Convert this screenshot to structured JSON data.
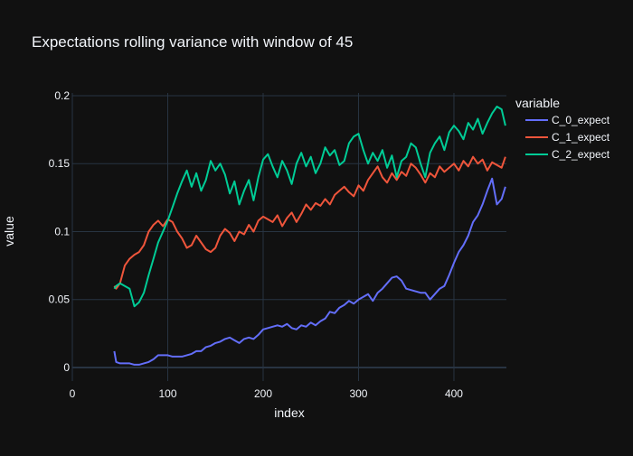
{
  "colors": {
    "background": "#111111",
    "grid": "#283442",
    "text": "#f2f5fa",
    "series": [
      "#636efa",
      "#EF553B",
      "#00cc96"
    ]
  },
  "chart_data": {
    "type": "line",
    "title": "Expectations rolling variance with window of 45",
    "xlabel": "index",
    "ylabel": "value",
    "xlim": [
      0,
      455
    ],
    "ylim": [
      -0.01,
      0.202
    ],
    "xticks": [
      0,
      100,
      200,
      300,
      400
    ],
    "yticks": [
      0,
      0.05,
      0.1,
      0.15,
      0.2
    ],
    "ytick_labels": [
      "0",
      "0.05",
      "0.1",
      "0.15",
      "0.2"
    ],
    "grid": true,
    "legend": {
      "title": "variable",
      "placement": "right"
    },
    "series": [
      {
        "name": "C_0_expect",
        "color": "#636efa",
        "x": [
          44,
          46,
          50,
          55,
          60,
          65,
          70,
          75,
          80,
          85,
          90,
          95,
          100,
          105,
          110,
          115,
          120,
          125,
          130,
          135,
          140,
          145,
          150,
          155,
          160,
          165,
          170,
          175,
          180,
          185,
          190,
          195,
          200,
          205,
          210,
          215,
          220,
          225,
          230,
          235,
          240,
          245,
          250,
          255,
          260,
          265,
          270,
          275,
          280,
          285,
          290,
          295,
          300,
          305,
          310,
          315,
          320,
          325,
          330,
          335,
          340,
          345,
          350,
          355,
          360,
          365,
          370,
          375,
          380,
          385,
          390,
          395,
          400,
          405,
          410,
          415,
          420,
          425,
          430,
          435,
          440,
          445,
          450,
          454
        ],
        "y": [
          0.012,
          0.004,
          0.003,
          0.003,
          0.003,
          0.002,
          0.002,
          0.003,
          0.004,
          0.006,
          0.009,
          0.009,
          0.009,
          0.008,
          0.008,
          0.008,
          0.009,
          0.01,
          0.012,
          0.012,
          0.015,
          0.016,
          0.018,
          0.019,
          0.021,
          0.022,
          0.02,
          0.018,
          0.021,
          0.022,
          0.021,
          0.024,
          0.028,
          0.029,
          0.03,
          0.031,
          0.03,
          0.032,
          0.029,
          0.028,
          0.031,
          0.03,
          0.033,
          0.031,
          0.034,
          0.036,
          0.041,
          0.04,
          0.044,
          0.046,
          0.049,
          0.047,
          0.05,
          0.052,
          0.054,
          0.049,
          0.055,
          0.058,
          0.062,
          0.066,
          0.067,
          0.064,
          0.058,
          0.057,
          0.056,
          0.055,
          0.055,
          0.05,
          0.054,
          0.058,
          0.06,
          0.068,
          0.077,
          0.085,
          0.09,
          0.097,
          0.107,
          0.112,
          0.12,
          0.13,
          0.139,
          0.12,
          0.124,
          0.133
        ]
      },
      {
        "name": "C_1_expect",
        "color": "#EF553B",
        "x": [
          44,
          46,
          50,
          55,
          60,
          65,
          70,
          75,
          80,
          85,
          90,
          95,
          100,
          105,
          110,
          115,
          120,
          125,
          130,
          135,
          140,
          145,
          150,
          155,
          160,
          165,
          170,
          175,
          180,
          185,
          190,
          195,
          200,
          205,
          210,
          215,
          220,
          225,
          230,
          235,
          240,
          245,
          250,
          255,
          260,
          265,
          270,
          275,
          280,
          285,
          290,
          295,
          300,
          305,
          310,
          315,
          320,
          325,
          330,
          335,
          340,
          345,
          350,
          355,
          360,
          365,
          370,
          375,
          380,
          385,
          390,
          395,
          400,
          405,
          410,
          415,
          420,
          425,
          430,
          435,
          440,
          445,
          450,
          454
        ],
        "y": [
          0.06,
          0.058,
          0.062,
          0.075,
          0.08,
          0.083,
          0.085,
          0.09,
          0.1,
          0.105,
          0.108,
          0.104,
          0.109,
          0.107,
          0.1,
          0.095,
          0.088,
          0.09,
          0.097,
          0.092,
          0.087,
          0.085,
          0.088,
          0.097,
          0.102,
          0.099,
          0.093,
          0.1,
          0.098,
          0.105,
          0.1,
          0.108,
          0.111,
          0.109,
          0.107,
          0.112,
          0.104,
          0.11,
          0.114,
          0.107,
          0.113,
          0.12,
          0.116,
          0.121,
          0.119,
          0.124,
          0.12,
          0.127,
          0.13,
          0.133,
          0.129,
          0.126,
          0.134,
          0.13,
          0.138,
          0.143,
          0.148,
          0.14,
          0.136,
          0.143,
          0.138,
          0.144,
          0.141,
          0.15,
          0.147,
          0.142,
          0.136,
          0.143,
          0.14,
          0.148,
          0.144,
          0.147,
          0.15,
          0.145,
          0.152,
          0.148,
          0.155,
          0.15,
          0.153,
          0.145,
          0.151,
          0.149,
          0.147,
          0.155
        ]
      },
      {
        "name": "C_2_expect",
        "color": "#00cc96",
        "x": [
          44,
          46,
          50,
          55,
          60,
          65,
          70,
          75,
          80,
          85,
          90,
          95,
          100,
          105,
          110,
          115,
          120,
          125,
          130,
          135,
          140,
          145,
          150,
          155,
          160,
          165,
          170,
          175,
          180,
          185,
          190,
          195,
          200,
          205,
          210,
          215,
          220,
          225,
          230,
          235,
          240,
          245,
          250,
          255,
          260,
          265,
          270,
          275,
          280,
          285,
          290,
          295,
          300,
          305,
          310,
          315,
          320,
          325,
          330,
          335,
          340,
          345,
          350,
          355,
          360,
          365,
          370,
          375,
          380,
          385,
          390,
          395,
          400,
          405,
          410,
          415,
          420,
          425,
          430,
          435,
          440,
          445,
          450,
          454
        ],
        "y": [
          0.058,
          0.06,
          0.062,
          0.06,
          0.058,
          0.045,
          0.048,
          0.055,
          0.068,
          0.08,
          0.092,
          0.1,
          0.108,
          0.118,
          0.128,
          0.137,
          0.145,
          0.133,
          0.143,
          0.13,
          0.138,
          0.152,
          0.145,
          0.15,
          0.142,
          0.128,
          0.137,
          0.12,
          0.13,
          0.138,
          0.123,
          0.14,
          0.153,
          0.157,
          0.148,
          0.14,
          0.152,
          0.145,
          0.135,
          0.15,
          0.158,
          0.148,
          0.155,
          0.143,
          0.15,
          0.162,
          0.156,
          0.16,
          0.149,
          0.152,
          0.165,
          0.17,
          0.172,
          0.16,
          0.15,
          0.158,
          0.152,
          0.16,
          0.147,
          0.156,
          0.14,
          0.152,
          0.155,
          0.165,
          0.162,
          0.15,
          0.14,
          0.158,
          0.165,
          0.17,
          0.16,
          0.173,
          0.178,
          0.174,
          0.168,
          0.18,
          0.175,
          0.183,
          0.172,
          0.18,
          0.187,
          0.192,
          0.19,
          0.178
        ]
      }
    ]
  }
}
